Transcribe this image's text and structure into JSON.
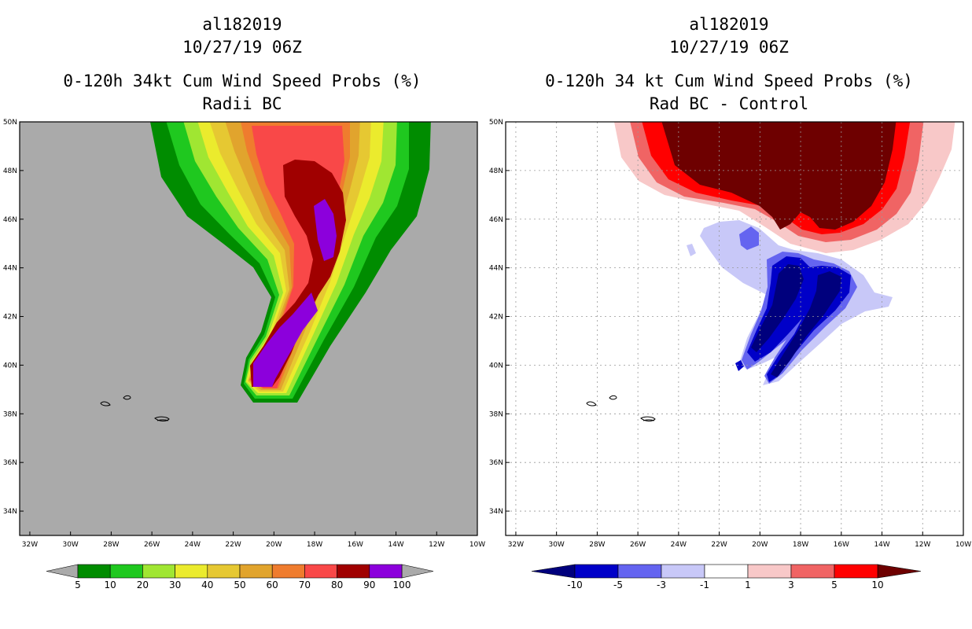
{
  "chart_data": [
    {
      "type": "heatmap",
      "storm_id": "al182019",
      "datetime": "10/27/19 06Z",
      "title": "0-120h 34kt Cum Wind Speed Probs (%)",
      "subtitle": "Radii BC",
      "xlim": [
        -32.5,
        -10
      ],
      "ylim": [
        33,
        50
      ],
      "x_ticks": [
        "32W",
        "30W",
        "28W",
        "26W",
        "24W",
        "22W",
        "20W",
        "18W",
        "16W",
        "14W",
        "12W",
        "10W"
      ],
      "y_ticks": [
        "34N",
        "36N",
        "38N",
        "40N",
        "42N",
        "44N",
        "46N",
        "48N",
        "50N"
      ],
      "grid": false,
      "background_color": "#aaaaaa",
      "colorbar": {
        "levels": [
          "5",
          "10",
          "20",
          "30",
          "40",
          "50",
          "60",
          "70",
          "80",
          "90",
          "100"
        ],
        "colors": [
          "#008c00",
          "#1fc81f",
          "#a0e632",
          "#ebeb2d",
          "#e6c832",
          "#e1a42d",
          "#ef7c2e",
          "#f94848",
          "#a00000",
          "#8c00dc"
        ],
        "under_color": "#aaaaaa",
        "over_color": "#aaaaaa"
      },
      "regions": [
        {
          "level": 5,
          "description": "probability > 5% swath covering northern and central track, 45N-50N, 23W-13W, narrowing to 39N near 20W"
        },
        {
          "level": 90,
          "description": "max core band around track from 39N 20.5W to 48N 17.5W"
        },
        {
          "level": 100,
          "description": "purple cores near 39.5-43N 19-20W and 44.5-46.8N 16.8W"
        }
      ]
    },
    {
      "type": "heatmap",
      "storm_id": "al182019",
      "datetime": "10/27/19 06Z",
      "title": "0-120h 34 kt Cum Wind Speed Probs (%)",
      "subtitle": "Rad BC - Control",
      "xlim": [
        -32.5,
        -10
      ],
      "ylim": [
        33,
        50
      ],
      "x_ticks": [
        "32W",
        "30W",
        "28W",
        "26W",
        "24W",
        "22W",
        "20W",
        "18W",
        "16W",
        "14W",
        "12W",
        "10W"
      ],
      "y_ticks": [
        "34N",
        "36N",
        "38N",
        "40N",
        "42N",
        "44N",
        "46N",
        "48N",
        "50N"
      ],
      "grid": true,
      "background_color": "#ffffff",
      "colorbar": {
        "levels": [
          "-10",
          "-5",
          "-3",
          "-1",
          "1",
          "3",
          "5",
          "10"
        ],
        "colors": [
          "#0000c8",
          "#6464f0",
          "#c8c8f8",
          "#ffffff",
          "#f8c8c8",
          "#f06464",
          "#ff0000"
        ],
        "under_color": "#00007d",
        "over_color": "#6e0000"
      },
      "regions": [
        {
          "level": 10,
          "description": "dark red positive difference over 45N-50N, 21W-13W"
        },
        {
          "level": -10,
          "description": "dark blue negative bands from 39.5N to 44N between 21W and 16W"
        }
      ]
    }
  ]
}
